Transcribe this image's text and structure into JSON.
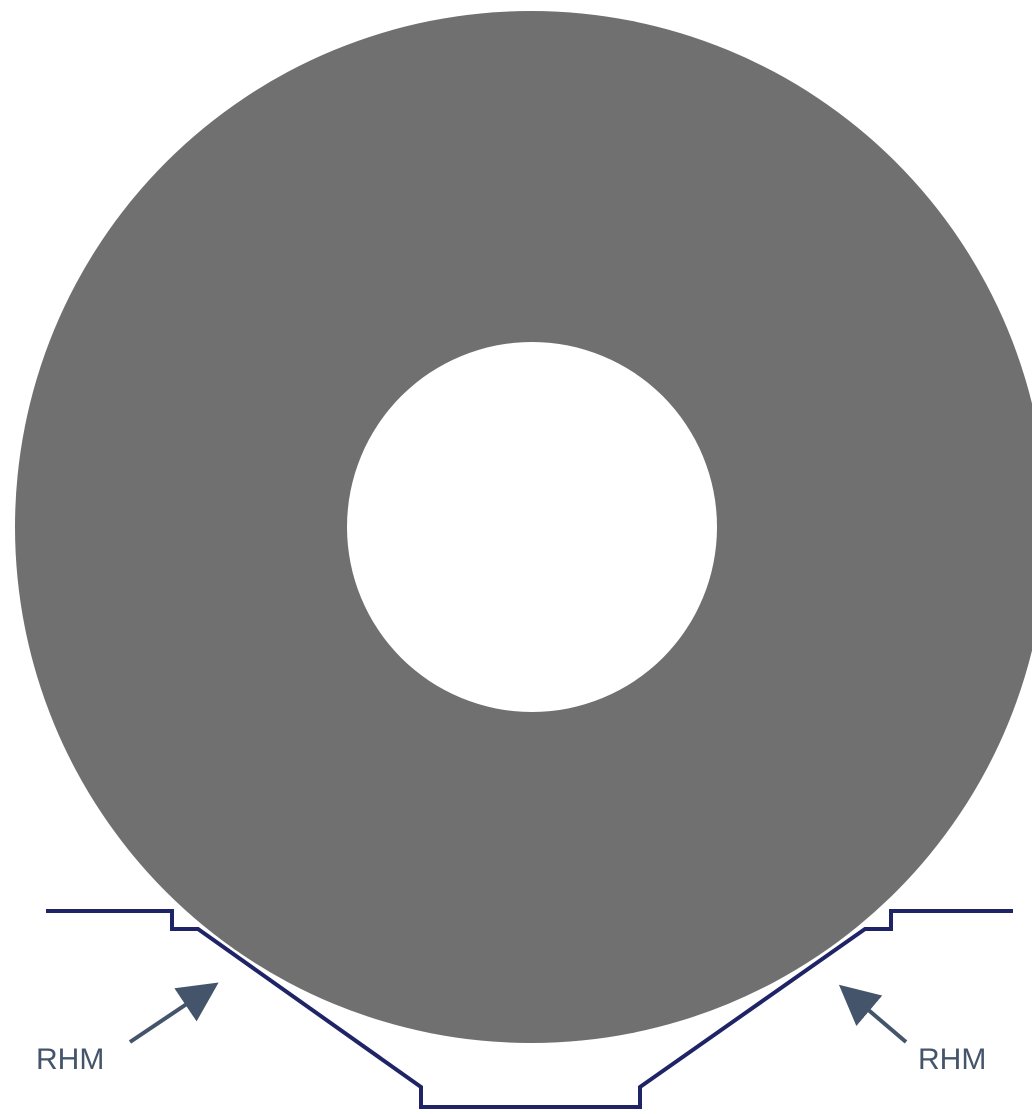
{
  "diagram": {
    "labels": {
      "left": "RHM",
      "right": "RHM"
    },
    "colors": {
      "ring": "#707070",
      "hole": "#ffffff",
      "profile": "#1f2466",
      "arrow": "#44546a",
      "label": "#44546a",
      "background": "#ffffff"
    }
  }
}
